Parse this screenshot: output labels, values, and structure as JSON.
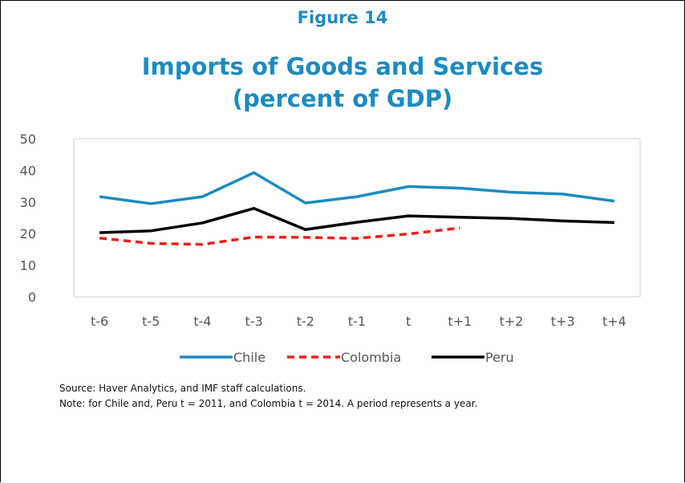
{
  "figure_label": "Figure 14",
  "title_line1": "Imports of Goods and Services",
  "title_line2": "(percent of GDP)",
  "source": "Source: Haver Analytics, and IMF staff calculations.",
  "note": "Note: for Chile and, Peru t = 2011, and Colombia t = 2014. A period represents a year.",
  "colors": {
    "chile": "#1b8bbf",
    "colombia": "#e8201b",
    "peru": "#000000",
    "title": "#1b8bbf"
  },
  "chart_data": {
    "type": "line",
    "categories": [
      "t-6",
      "t-5",
      "t-4",
      "t-3",
      "t-2",
      "t-1",
      "t",
      "t+1",
      "t+2",
      "t+3",
      "t+4"
    ],
    "yticks": [
      "0",
      "10",
      "20",
      "30",
      "40",
      "50"
    ],
    "ylim": [
      0,
      50
    ],
    "legend_position": "bottom",
    "grid": false,
    "series": [
      {
        "name": "Chile",
        "values": [
          31.7,
          29.5,
          31.7,
          39.3,
          29.7,
          31.7,
          34.9,
          34.4,
          33.1,
          32.5,
          30.3
        ]
      },
      {
        "name": "Colombia",
        "values": [
          18.6,
          16.9,
          16.6,
          18.9,
          18.8,
          18.5,
          19.9,
          21.8,
          null,
          null,
          null
        ]
      },
      {
        "name": "Peru",
        "values": [
          20.3,
          20.9,
          23.4,
          28.0,
          21.3,
          23.6,
          25.6,
          25.2,
          24.8,
          24.0,
          23.5
        ]
      }
    ]
  }
}
